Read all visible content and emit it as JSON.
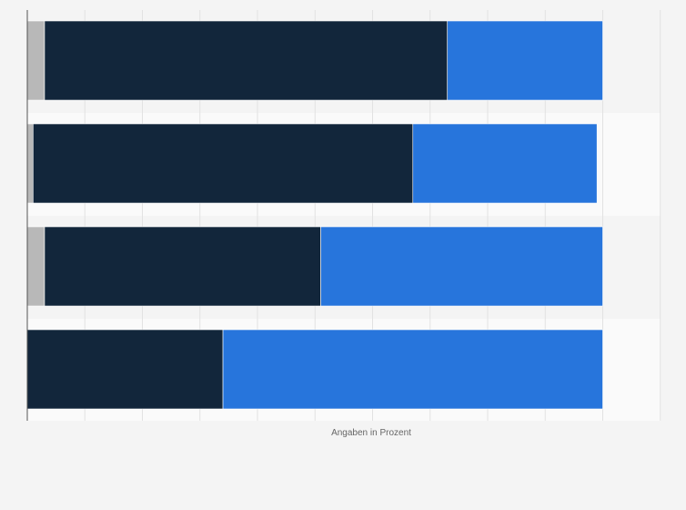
{
  "chart_data": {
    "type": "bar",
    "orientation": "horizontal",
    "stacked": true,
    "categories": [
      "",
      "",
      "",
      ""
    ],
    "series": [
      {
        "values": [
          3,
          1,
          3,
          0
        ],
        "color": "#b8b8b8"
      },
      {
        "values": [
          70,
          66,
          48,
          34
        ],
        "color": "#12263b"
      },
      {
        "values": [
          27,
          32,
          49,
          66
        ],
        "color": "#2775dc"
      }
    ],
    "xlim": [
      0,
      110
    ],
    "x_tick_step": 10,
    "xlabel": "Angaben in Prozent",
    "ylabel": "",
    "grid": true,
    "legend": "none"
  }
}
